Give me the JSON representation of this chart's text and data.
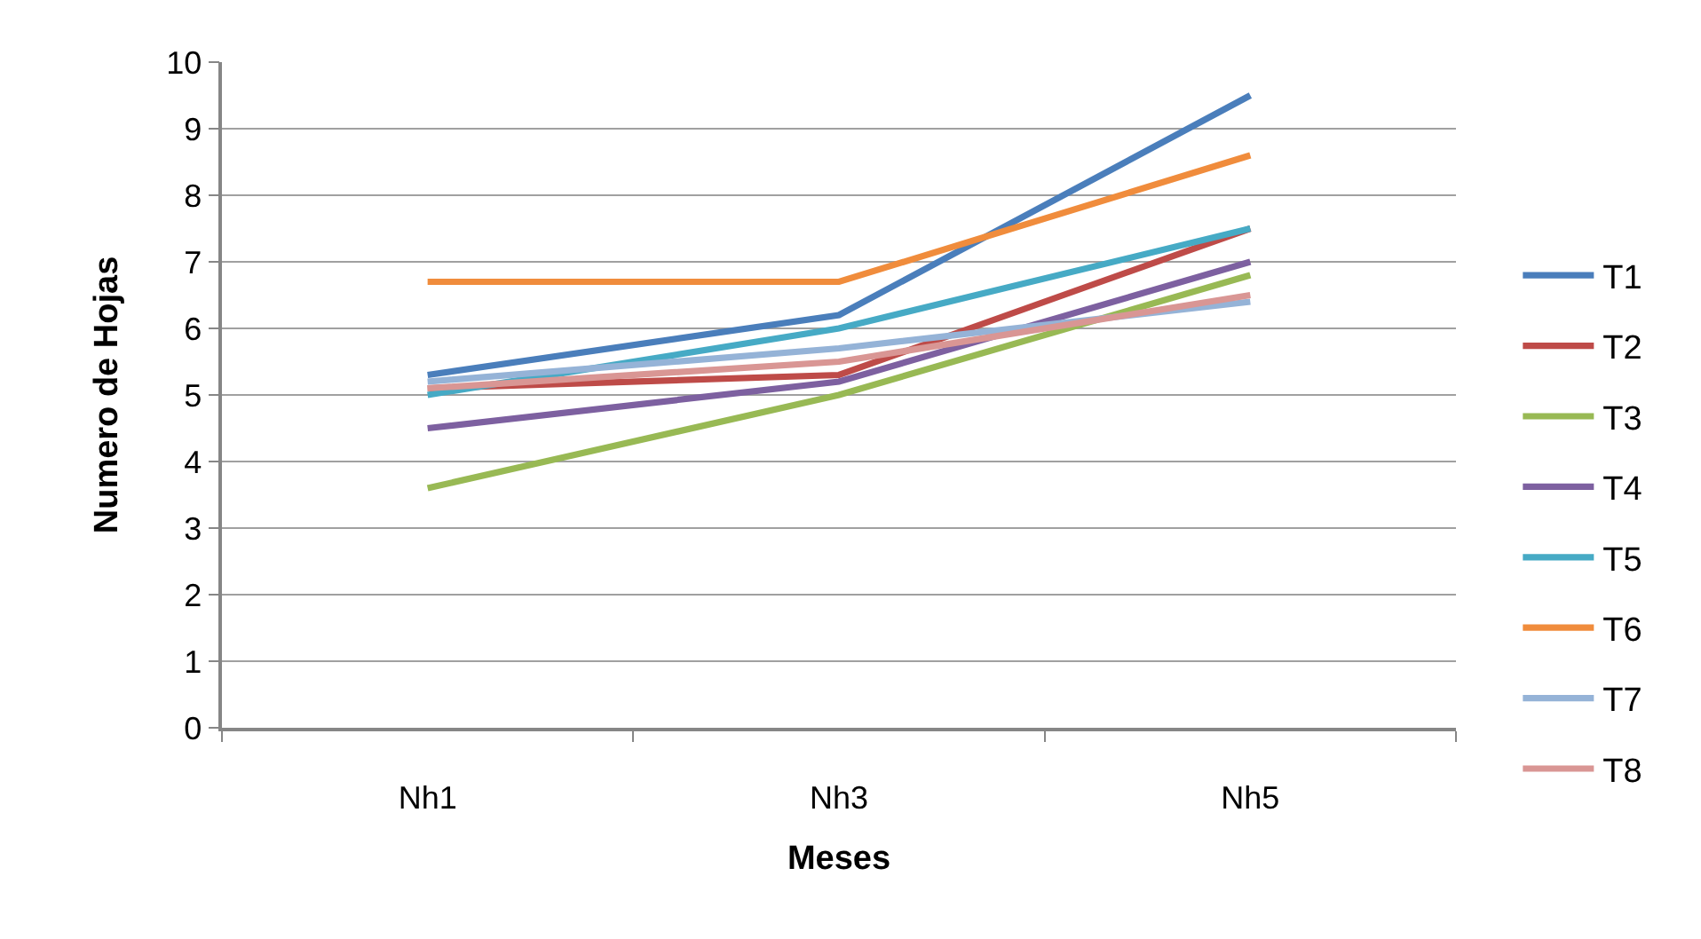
{
  "chart_data": {
    "type": "line",
    "xlabel": "Meses",
    "ylabel": "Numero de Hojas",
    "categories": [
      "Nh1",
      "Nh3",
      "Nh5"
    ],
    "series": [
      {
        "name": "T1",
        "color": "#4a7ebb",
        "values": [
          5.3,
          6.2,
          9.5
        ]
      },
      {
        "name": "T2",
        "color": "#be4b48",
        "values": [
          5.1,
          5.3,
          7.5
        ]
      },
      {
        "name": "T3",
        "color": "#98b954",
        "values": [
          3.6,
          5.0,
          6.8
        ]
      },
      {
        "name": "T4",
        "color": "#7d60a0",
        "values": [
          4.5,
          5.2,
          7.0
        ]
      },
      {
        "name": "T5",
        "color": "#46aac5",
        "values": [
          5.0,
          6.0,
          7.5
        ]
      },
      {
        "name": "T6",
        "color": "#f08c3c",
        "values": [
          6.7,
          6.7,
          8.6
        ]
      },
      {
        "name": "T7",
        "color": "#95b3d7",
        "values": [
          5.2,
          5.7,
          6.4
        ]
      },
      {
        "name": "T8",
        "color": "#d99694",
        "values": [
          5.1,
          5.5,
          6.5
        ]
      }
    ],
    "ylim": [
      0,
      10
    ],
    "yticks": [
      0,
      1,
      2,
      3,
      4,
      5,
      6,
      7,
      8,
      9,
      10
    ],
    "grid": "y",
    "legend": "right",
    "marker": "none",
    "line_style": "solid"
  }
}
